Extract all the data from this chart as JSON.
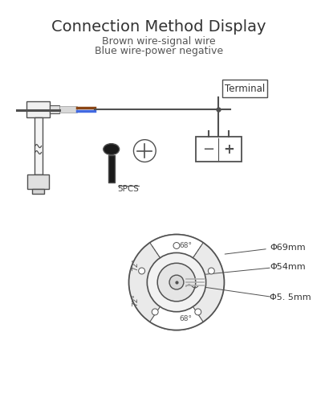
{
  "title": "Connection Method Display",
  "subtitle1": "Brown wire-signal wire",
  "subtitle2": "Blue wire-power negative",
  "bg_color": "#ffffff",
  "line_color": "#505050",
  "terminal_label": "Terminal",
  "screw_label": "5PCS",
  "dim_labels": [
    "Φ69mm",
    "Φ54mm",
    "Φ5. 5mm"
  ],
  "angle_labels": [
    "68°",
    "72°",
    "72°",
    "68°"
  ],
  "brown_color": "#8B4513",
  "blue_color": "#4169E1",
  "dark_color": "#1a1a1a",
  "gray_light": "#e8e8e8",
  "gray_mid": "#cccccc",
  "gray_dark": "#aaaaaa"
}
